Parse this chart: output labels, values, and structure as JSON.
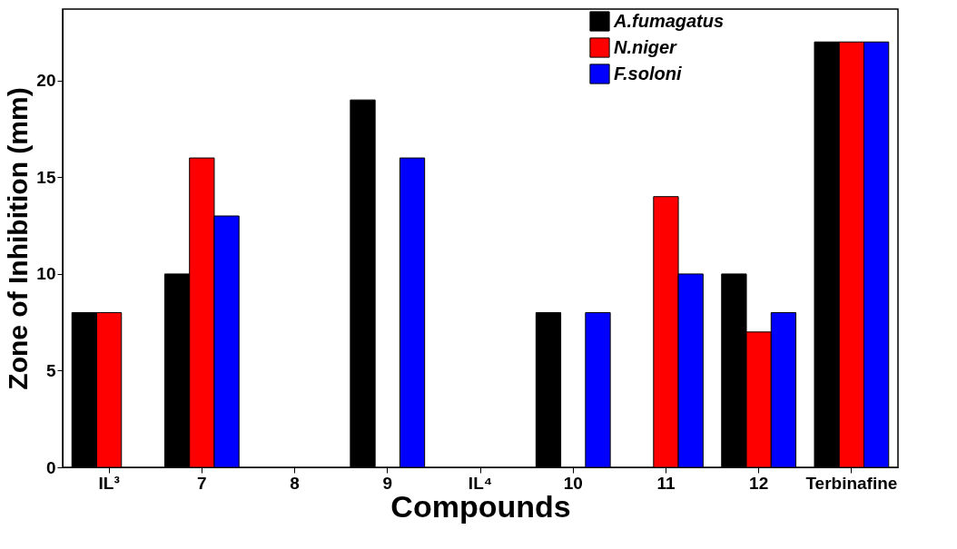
{
  "chart_data": {
    "type": "bar",
    "xlabel": "Compounds",
    "ylabel": "Zone of Inhibition (mm)",
    "categories": [
      "IL³",
      "7",
      "8",
      "9",
      "IL⁴",
      "10",
      "11",
      "12",
      "Terbinafine"
    ],
    "series": [
      {
        "name": "A.fumagatus",
        "color": "#000000",
        "values": [
          8,
          10,
          null,
          19,
          null,
          8,
          null,
          10,
          22
        ]
      },
      {
        "name": "N.niger",
        "color": "#ff0000",
        "values": [
          8,
          16,
          null,
          null,
          null,
          null,
          14,
          7,
          22
        ]
      },
      {
        "name": "F.soloni",
        "color": "#0000ff",
        "values": [
          null,
          13,
          null,
          16,
          null,
          8,
          10,
          8,
          22
        ]
      }
    ],
    "ylim": [
      0,
      23.7
    ],
    "yticks": [
      0,
      5,
      10,
      15,
      20
    ],
    "grid": false,
    "legend": "top right"
  }
}
